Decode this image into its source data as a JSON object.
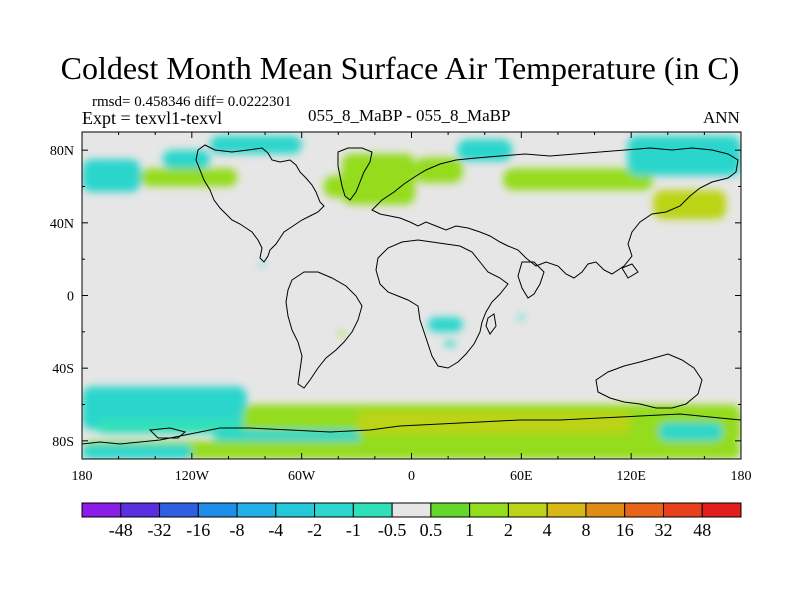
{
  "header": {
    "title": "Coldest Month Mean Surface Air Temperature (in C)",
    "stats": "rmsd= 0.458346 diff= 0.0222301",
    "experiment": "Expt = texvl1-texvl",
    "case": "055_8_MaBP - 055_8_MaBP",
    "season": "ANN"
  },
  "chart_data": {
    "type": "heatmap",
    "title": "Coldest Month Mean Surface Air Temperature (in C)",
    "xlabel": "",
    "ylabel": "",
    "xlim": [
      -180,
      180
    ],
    "ylim": [
      -90,
      90
    ],
    "x_ticks": [
      {
        "value": -180,
        "label": "180"
      },
      {
        "value": -120,
        "label": "120W"
      },
      {
        "value": -60,
        "label": "60W"
      },
      {
        "value": 0,
        "label": "0"
      },
      {
        "value": 60,
        "label": "60E"
      },
      {
        "value": 120,
        "label": "120E"
      },
      {
        "value": 180,
        "label": "180"
      }
    ],
    "y_ticks": [
      {
        "value": 80,
        "label": "80N"
      },
      {
        "value": 40,
        "label": "40N"
      },
      {
        "value": 0,
        "label": "0"
      },
      {
        "value": -40,
        "label": "40S"
      },
      {
        "value": -80,
        "label": "80S"
      }
    ],
    "background_color": "#e6e6e6",
    "colorbar": {
      "levels": [
        "-48",
        "-32",
        "-16",
        "-8",
        "-4",
        "-2",
        "-1",
        "-0.5",
        "0.5",
        "1",
        "2",
        "4",
        "8",
        "16",
        "32",
        "48"
      ],
      "colors": [
        "#8a1ee6",
        "#5a2fe0",
        "#2d5fe0",
        "#1e8ee8",
        "#22b0e6",
        "#24c8d8",
        "#2cd6cc",
        "#30e0b8",
        "#e6e6e6",
        "#64d82a",
        "#94dc1e",
        "#bcd418",
        "#d8b814",
        "#e08c14",
        "#e86418",
        "#e8401c",
        "#e01e1e"
      ]
    },
    "regions": [
      {
        "name": "arctic-cool-west",
        "level": "-1",
        "lon": [
          -180,
          -148
        ],
        "lat": [
          57,
          75
        ]
      },
      {
        "name": "arctic-cool-alaska",
        "level": "-1",
        "lon": [
          -136,
          -110
        ],
        "lat": [
          70,
          80
        ]
      },
      {
        "name": "arctic-cool-north",
        "level": "-1",
        "lon": [
          -110,
          -60
        ],
        "lat": [
          78,
          88
        ]
      },
      {
        "name": "canada-warm",
        "level": "1",
        "lon": [
          -148,
          -95
        ],
        "lat": [
          60,
          70
        ]
      },
      {
        "name": "greenland-warm",
        "level": "1",
        "lon": [
          -38,
          2
        ],
        "lat": [
          50,
          78
        ]
      },
      {
        "name": "north-atlantic-warm",
        "level": "1",
        "lon": [
          -48,
          -15
        ],
        "lat": [
          54,
          66
        ]
      },
      {
        "name": "scandinavia-warm",
        "level": "1",
        "lon": [
          2,
          28
        ],
        "lat": [
          62,
          76
        ]
      },
      {
        "name": "barents-cool",
        "level": "-1",
        "lon": [
          25,
          55
        ],
        "lat": [
          74,
          86
        ]
      },
      {
        "name": "siberia-warm",
        "level": "1",
        "lon": [
          50,
          132
        ],
        "lat": [
          58,
          70
        ]
      },
      {
        "name": "east-siberia-cool",
        "level": "-1",
        "lon": [
          118,
          180
        ],
        "lat": [
          66,
          88
        ]
      },
      {
        "name": "okhotsk-warm",
        "level": "2",
        "lon": [
          132,
          172
        ],
        "lat": [
          42,
          58
        ]
      },
      {
        "name": "north-america-spot",
        "level": "-1",
        "lon": [
          -83,
          -80
        ],
        "lat": [
          16,
          18
        ]
      },
      {
        "name": "africa-cool",
        "level": "-1",
        "lon": [
          9,
          28
        ],
        "lat": [
          -20,
          -12
        ]
      },
      {
        "name": "africa-spot",
        "level": "-1",
        "lon": [
          18,
          24
        ],
        "lat": [
          -28,
          -25
        ]
      },
      {
        "name": "south-america-spot",
        "level": "1",
        "lon": [
          -40,
          -36
        ],
        "lat": [
          -22,
          -20
        ]
      },
      {
        "name": "indian-ocean-spot",
        "level": "-1",
        "lon": [
          58,
          62
        ],
        "lat": [
          -13,
          -11
        ]
      },
      {
        "name": "south-pacific-cool",
        "level": "-1",
        "lon": [
          -180,
          -90
        ],
        "lat": [
          -74,
          -50
        ]
      },
      {
        "name": "antarctic-coast-cool",
        "level": "-0.5",
        "lon": [
          -172,
          -70
        ],
        "lat": [
          -76,
          -68
        ]
      },
      {
        "name": "southern-ocean-warm",
        "level": "1",
        "lon": [
          -92,
          180
        ],
        "lat": [
          -82,
          -60
        ]
      },
      {
        "name": "southern-ocean-core",
        "level": "2",
        "lon": [
          -30,
          120
        ],
        "lat": [
          -76,
          -64
        ]
      },
      {
        "name": "weddell-cool",
        "level": "-1",
        "lon": [
          -108,
          -28
        ],
        "lat": [
          -84,
          -74
        ]
      },
      {
        "name": "ross-cool",
        "level": "-1",
        "lon": [
          135,
          170
        ],
        "lat": [
          -80,
          -70
        ]
      },
      {
        "name": "antarctic-interior-warm",
        "level": "1",
        "lon": [
          -180,
          180
        ],
        "lat": [
          -90,
          -80
        ]
      },
      {
        "name": "antarctic-interior-cool",
        "level": "-1",
        "lon": [
          -180,
          -120
        ],
        "lat": [
          -90,
          -82
        ]
      }
    ]
  }
}
